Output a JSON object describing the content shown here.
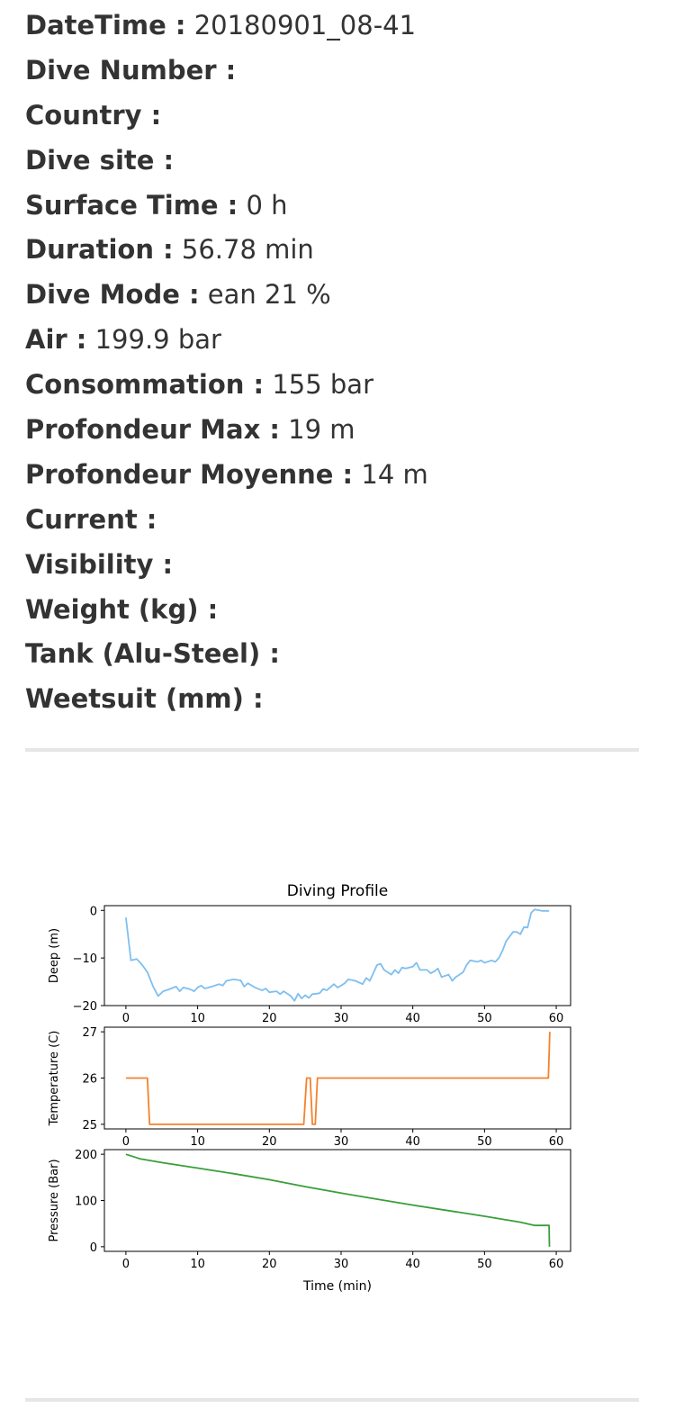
{
  "dive": {
    "rows": [
      {
        "label": "DateTime :",
        "value": " 20180901_08-41"
      },
      {
        "label": "Dive Number :",
        "value": ""
      },
      {
        "label": "Country :",
        "value": ""
      },
      {
        "label": "Dive site :",
        "value": ""
      },
      {
        "label": "Surface Time :",
        "value": " 0 h"
      },
      {
        "label": "Duration :",
        "value": " 56.78 min"
      },
      {
        "label": "Dive Mode :",
        "value": " ean 21 %"
      },
      {
        "label": "Air :",
        "value": " 199.9 bar"
      },
      {
        "label": "Consommation :",
        "value": " 155 bar"
      },
      {
        "label": "Profondeur Max :",
        "value": " 19 m"
      },
      {
        "label": "Profondeur Moyenne :",
        "value": " 14 m"
      },
      {
        "label": "Current :",
        "value": ""
      },
      {
        "label": "Visibility :",
        "value": ""
      },
      {
        "label": "Weight (kg) :",
        "value": ""
      },
      {
        "label": "Tank (Alu-Steel) :",
        "value": ""
      },
      {
        "label": "Weetsuit (mm) :",
        "value": ""
      }
    ]
  },
  "chart_data": {
    "type": "line",
    "title": "Diving Profile",
    "xlabel": "Time (min)",
    "xlim": [
      -3,
      62
    ],
    "x_ticks": [
      0,
      10,
      20,
      30,
      40,
      50,
      60
    ],
    "x_tick_labels": [
      "0",
      "10",
      "20",
      "30",
      "40",
      "50",
      "60"
    ],
    "panels": [
      {
        "name": "depth",
        "ylabel": "Deep (m)",
        "ylim": [
          -20,
          1
        ],
        "y_ticks": [
          0,
          -10,
          -20
        ],
        "y_tick_labels": [
          "0",
          "−10",
          "−20"
        ],
        "color": "#7fbfef",
        "x": [
          0,
          0.7,
          1.5,
          2.3,
          3,
          3.8,
          4.5,
          5.2,
          6,
          7,
          7.5,
          8,
          9,
          9.5,
          10,
          10.5,
          11,
          12,
          13,
          13.5,
          14,
          15,
          16,
          16.5,
          17,
          18,
          19,
          19.5,
          20,
          21,
          21.5,
          22,
          23,
          23.5,
          24,
          24.5,
          25,
          25.5,
          26,
          27,
          27.5,
          28,
          29,
          29.5,
          30,
          30.5,
          31,
          32,
          33,
          33.5,
          34,
          35,
          35.5,
          36,
          37,
          37.5,
          38,
          38.5,
          39,
          40,
          40.5,
          41,
          42,
          42.5,
          43,
          43.5,
          44,
          45,
          45.5,
          46,
          47,
          47.5,
          48,
          49,
          49.5,
          50,
          51,
          51.5,
          52,
          52.5,
          53,
          54,
          54.5,
          55,
          55.5,
          56,
          56.5,
          57,
          58,
          59
        ],
        "values": [
          -1.5,
          -10.5,
          -10.2,
          -11.5,
          -13,
          -16,
          -18,
          -17,
          -16.6,
          -16,
          -17,
          -16.2,
          -16.6,
          -17,
          -16.2,
          -15.8,
          -16.4,
          -16,
          -15.5,
          -15.8,
          -14.8,
          -14.5,
          -14.7,
          -16,
          -15.3,
          -16.2,
          -16.8,
          -16.4,
          -17.2,
          -17,
          -17.6,
          -17,
          -18,
          -19,
          -17.5,
          -18.5,
          -17.8,
          -18.4,
          -17.6,
          -17.4,
          -16.5,
          -16.8,
          -15.5,
          -16.2,
          -15.8,
          -15.3,
          -14.5,
          -14.8,
          -15.5,
          -14.2,
          -14.8,
          -11.5,
          -11.2,
          -12.5,
          -13.5,
          -12.5,
          -13.2,
          -12,
          -12.2,
          -11.8,
          -11,
          -12.5,
          -12.5,
          -13.2,
          -12.8,
          -12.2,
          -14,
          -13.5,
          -14.8,
          -14,
          -13,
          -11.5,
          -10.5,
          -10.8,
          -10.5,
          -11,
          -10.5,
          -10.8,
          -10,
          -8.5,
          -6.5,
          -4.5,
          -4.5,
          -5,
          -3.5,
          -3.6,
          -0.5,
          0.2,
          -0.1,
          -0.1
        ]
      },
      {
        "name": "temperature",
        "ylabel": "Temperature (C)",
        "ylim": [
          24.9,
          27.1
        ],
        "y_ticks": [
          25,
          26,
          27
        ],
        "y_tick_labels": [
          "25",
          "26",
          "27"
        ],
        "color": "#f5812b",
        "x": [
          0,
          3,
          3.3,
          24.8,
          25.2,
          25.7,
          26,
          26.4,
          26.7,
          27.1,
          58.9,
          59.1
        ],
        "values": [
          26,
          26,
          25,
          25,
          26,
          26,
          25,
          25,
          26,
          26,
          26,
          27
        ]
      },
      {
        "name": "pressure",
        "ylabel": "Pressure (Bar)",
        "ylim": [
          -10,
          210
        ],
        "y_ticks": [
          0,
          100,
          200
        ],
        "y_tick_labels": [
          "0",
          "100",
          "200"
        ],
        "color": "#3a9e3a",
        "x": [
          0,
          1,
          2,
          5,
          10,
          15,
          20,
          25,
          30,
          35,
          40,
          45,
          50,
          55,
          57,
          59,
          59.05
        ],
        "values": [
          199.9,
          195,
          190,
          182,
          170,
          158,
          145,
          130,
          116,
          103,
          90,
          78,
          66,
          53,
          46,
          46,
          0
        ]
      }
    ]
  }
}
